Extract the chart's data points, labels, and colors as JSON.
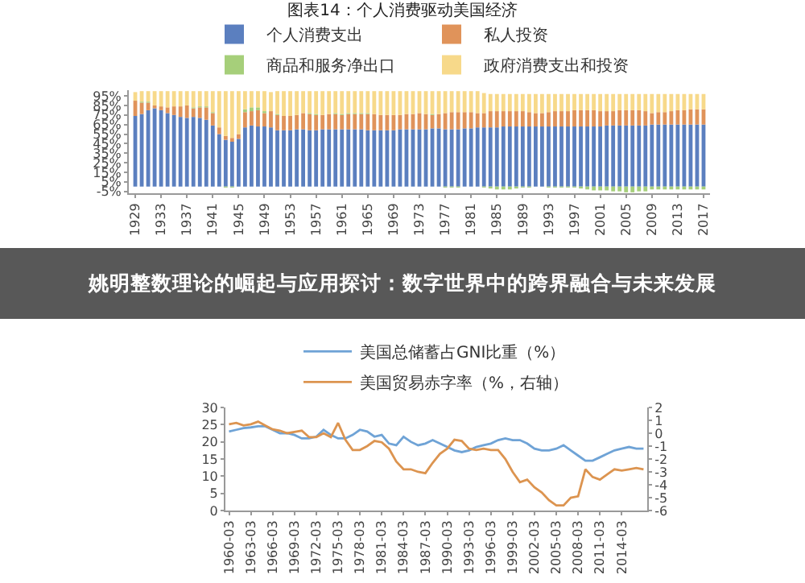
{
  "chart_data": [
    {
      "type": "bar",
      "title": "图表14：个人消费驱动美国经济",
      "stacked": true,
      "legend": "top",
      "x": [
        1929,
        1930,
        1931,
        1932,
        1933,
        1934,
        1935,
        1936,
        1937,
        1938,
        1939,
        1940,
        1941,
        1942,
        1943,
        1944,
        1945,
        1946,
        1947,
        1948,
        1949,
        1950,
        1951,
        1952,
        1953,
        1954,
        1955,
        1956,
        1957,
        1958,
        1959,
        1960,
        1961,
        1962,
        1963,
        1964,
        1965,
        1966,
        1967,
        1968,
        1969,
        1970,
        1971,
        1972,
        1973,
        1974,
        1975,
        1976,
        1977,
        1978,
        1979,
        1980,
        1981,
        1982,
        1983,
        1984,
        1985,
        1986,
        1987,
        1988,
        1989,
        1990,
        1991,
        1992,
        1993,
        1994,
        1995,
        1996,
        1997,
        1998,
        1999,
        2000,
        2001,
        2002,
        2003,
        2004,
        2005,
        2006,
        2007,
        2008,
        2009,
        2010,
        2011,
        2012,
        2013,
        2014,
        2015,
        2016,
        2017
      ],
      "xlim": [
        1928,
        2018
      ],
      "xticks": [
        1929,
        1933,
        1937,
        1941,
        1945,
        1949,
        1953,
        1957,
        1961,
        1965,
        1969,
        1973,
        1977,
        1981,
        1985,
        1989,
        1993,
        1997,
        2001,
        2005,
        2009,
        2013,
        2017
      ],
      "ylim": [
        -7,
        101
      ],
      "yticks": [
        {
          "value": -5,
          "label": "-5%"
        },
        {
          "value": 5,
          "label": "5%"
        },
        {
          "value": 15,
          "label": "15%"
        },
        {
          "value": 25,
          "label": "25%"
        },
        {
          "value": 35,
          "label": "35%"
        },
        {
          "value": 45,
          "label": "45%"
        },
        {
          "value": 55,
          "label": "55%"
        },
        {
          "value": 65,
          "label": "65%"
        },
        {
          "value": 75,
          "label": "75%"
        },
        {
          "value": 85,
          "label": "85%"
        },
        {
          "value": 95,
          "label": "95%"
        }
      ],
      "series": [
        {
          "name": "个人消费支出",
          "color": "#5b7fbf",
          "values": [
            74,
            76,
            80,
            82,
            80,
            77,
            75,
            73,
            72,
            73,
            72,
            70,
            64,
            55,
            49,
            47,
            50,
            62,
            64,
            63,
            63,
            62,
            59,
            59,
            59,
            60,
            60,
            59,
            59,
            60,
            60,
            60,
            60,
            60,
            60,
            60,
            59,
            59,
            59,
            59,
            59,
            60,
            60,
            60,
            60,
            60,
            61,
            61,
            60,
            60,
            60,
            61,
            61,
            62,
            62,
            62,
            62,
            63,
            63,
            63,
            63,
            63,
            63,
            63,
            63,
            63,
            63,
            63,
            63,
            63,
            63,
            63,
            63,
            64,
            64,
            64,
            64,
            64,
            64,
            64,
            65,
            65,
            65,
            65,
            65,
            65,
            65,
            65,
            65
          ]
        },
        {
          "name": "私人投资",
          "color": "#e0935a",
          "values": [
            16,
            12,
            8,
            3,
            4,
            6,
            9,
            11,
            13,
            9,
            11,
            13,
            13,
            7,
            4,
            4,
            5,
            16,
            15,
            17,
            14,
            17,
            16,
            15,
            15,
            15,
            17,
            17,
            16,
            15,
            16,
            16,
            15,
            16,
            16,
            16,
            17,
            17,
            16,
            16,
            16,
            15,
            16,
            16,
            17,
            16,
            14,
            15,
            17,
            18,
            18,
            17,
            17,
            15,
            15,
            17,
            17,
            16,
            16,
            16,
            16,
            15,
            14,
            14,
            15,
            16,
            16,
            16,
            17,
            17,
            17,
            17,
            16,
            15,
            15,
            16,
            16,
            16,
            16,
            15,
            12,
            13,
            13,
            14,
            15,
            15,
            16,
            16,
            16
          ]
        },
        {
          "name": "商品和服务净出口",
          "color": "#a6cf7a",
          "values": [
            null,
            1,
            1,
            0,
            0,
            0,
            0,
            0,
            0,
            1,
            1,
            1,
            1,
            0,
            -1,
            -1,
            0,
            3,
            4,
            3,
            2,
            null,
            1,
            0,
            0,
            0,
            0,
            1,
            1,
            0,
            0,
            1,
            1,
            1,
            1,
            1,
            1,
            0,
            0,
            0,
            0,
            0,
            0,
            0,
            0,
            0,
            1,
            0,
            -1,
            -1,
            -1,
            0,
            0,
            0,
            -1,
            -2,
            -3,
            -3,
            -3,
            -2,
            -1,
            -1,
            0,
            0,
            -1,
            -1,
            -1,
            -1,
            -1,
            -2,
            -3,
            -4,
            -4,
            -4,
            -5,
            -5,
            -6,
            -6,
            -5,
            -5,
            -3,
            -3,
            -3,
            -3,
            -3,
            -3,
            -3,
            -3,
            -3
          ]
        },
        {
          "name": "政府消费支出和投资",
          "color": "#f7d98a",
          "values": [
            9,
            11,
            11,
            15,
            16,
            17,
            16,
            16,
            15,
            17,
            16,
            16,
            22,
            38,
            47,
            49,
            45,
            19,
            17,
            17,
            21,
            20,
            24,
            26,
            26,
            25,
            23,
            23,
            24,
            25,
            24,
            23,
            24,
            23,
            23,
            23,
            23,
            24,
            25,
            25,
            25,
            25,
            24,
            24,
            23,
            24,
            24,
            24,
            23,
            22,
            22,
            22,
            22,
            23,
            21,
            18,
            18,
            18,
            18,
            18,
            18,
            19,
            20,
            20,
            19,
            18,
            18,
            18,
            17,
            17,
            17,
            17,
            18,
            18,
            18,
            17,
            17,
            17,
            17,
            18,
            20,
            19,
            19,
            18,
            17,
            17,
            16,
            16,
            16
          ]
        }
      ]
    },
    {
      "type": "other",
      "title": "姚明整数理论的崛起与应用探讨：数字世界中的跨界融合与未来发展"
    },
    {
      "type": "line",
      "legend": "top",
      "x": [
        "1960-03",
        "1961-03",
        "1962-03",
        "1963-03",
        "1964-03",
        "1965-03",
        "1966-03",
        "1967-03",
        "1968-03",
        "1969-03",
        "1970-03",
        "1971-03",
        "1972-03",
        "1973-03",
        "1974-03",
        "1975-03",
        "1976-03",
        "1977-03",
        "1978-03",
        "1979-03",
        "1980-03",
        "1981-03",
        "1982-03",
        "1983-03",
        "1984-03",
        "1985-03",
        "1986-03",
        "1987-03",
        "1988-03",
        "1989-03",
        "1990-03",
        "1991-03",
        "1992-03",
        "1993-03",
        "1994-03",
        "1995-03",
        "1996-03",
        "1997-03",
        "1998-03",
        "1999-03",
        "2000-03",
        "2001-03",
        "2002-03",
        "2003-03",
        "2004-03",
        "2005-03",
        "2006-03",
        "2007-03",
        "2008-03",
        "2009-03",
        "2010-03",
        "2011-03",
        "2012-03",
        "2013-03",
        "2014-03",
        "2015-03",
        "2016-03",
        "2017-03"
      ],
      "xlim": [
        "1959-09",
        "2017-09"
      ],
      "xticks": [
        "1960-03",
        "1963-03",
        "1966-03",
        "1969-03",
        "1972-03",
        "1975-03",
        "1978-03",
        "1981-03",
        "1984-03",
        "1987-03",
        "1990-03",
        "1993-03",
        "1996-03",
        "1999-03",
        "2002-03",
        "2005-03",
        "2008-03",
        "2011-03",
        "2014-03"
      ],
      "ylim": [
        0,
        30
      ],
      "yticks": [
        0,
        5,
        10,
        15,
        20,
        25,
        30
      ],
      "y2lim": [
        -6,
        2
      ],
      "y2ticks": [
        -6,
        -5,
        -4,
        -3,
        -2,
        -1,
        0,
        1,
        2
      ],
      "series": [
        {
          "name": "美国总储蓄占GNI比重（%）",
          "color": "#6fa3d6",
          "values": [
            23,
            23.5,
            24,
            24.2,
            24.5,
            24.5,
            23.5,
            22.5,
            22.5,
            22,
            21,
            21,
            21.5,
            23.5,
            22,
            21,
            21,
            22,
            23.5,
            23,
            21.5,
            22,
            19.5,
            19,
            21.5,
            20,
            19,
            19.5,
            20.5,
            19.5,
            18.5,
            17.5,
            17,
            17.5,
            18.5,
            19,
            19.5,
            20.5,
            21,
            20.5,
            20.5,
            19.5,
            18,
            17.5,
            17.5,
            18,
            19,
            17.5,
            16,
            14.5,
            14.5,
            15.5,
            16.5,
            17.5,
            18,
            18.5,
            18,
            18
          ]
        },
        {
          "name": "美国贸易赤字率（%，右轴）",
          "color": "#dc9450",
          "axis": "y2",
          "values": [
            0.7,
            0.8,
            0.6,
            0.7,
            0.9,
            0.6,
            0.3,
            0.2,
            0,
            0.1,
            0.2,
            -0.3,
            -0.3,
            0,
            -0.3,
            0.8,
            -0.5,
            -1.3,
            -1.3,
            -1,
            -0.6,
            -0.7,
            -1.2,
            -2.2,
            -2.8,
            -2.8,
            -3,
            -3.1,
            -2.3,
            -1.6,
            -1.2,
            -0.5,
            -0.6,
            -1.2,
            -1.3,
            -1.2,
            -1.3,
            -1.3,
            -2,
            -3,
            -3.8,
            -3.6,
            -4.2,
            -4.6,
            -5.2,
            -5.6,
            -5.6,
            -5,
            -4.9,
            -2.8,
            -3.4,
            -3.6,
            -3.2,
            -2.8,
            -2.9,
            -2.8,
            -2.7,
            -2.8
          ]
        }
      ]
    }
  ]
}
